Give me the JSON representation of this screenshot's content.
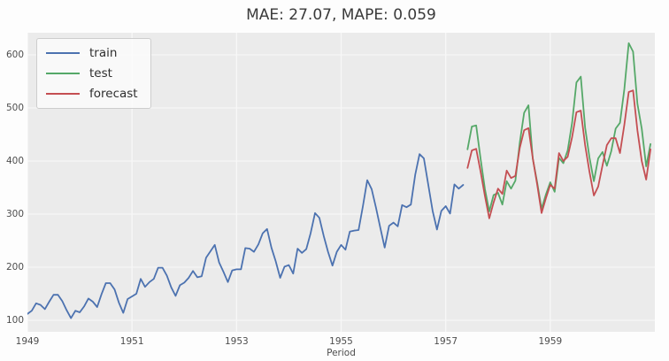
{
  "title": "MAE: 27.07, MAPE: 0.059",
  "chart_data": {
    "type": "line",
    "title": "MAE: 27.07, MAPE: 0.059",
    "xlabel": "Period",
    "ylabel": "",
    "grid": true,
    "legend_position": "upper left",
    "plot_bg": "#ebebeb",
    "grid_color": "#f7f7f7",
    "x_tick_labels": [
      "1949",
      "1951",
      "1953",
      "1955",
      "1957",
      "1959"
    ],
    "x_tick_months": [
      0,
      24,
      48,
      72,
      96,
      120
    ],
    "y_ticks": [
      100,
      200,
      300,
      400,
      500,
      600
    ],
    "xlim_months": [
      0,
      144
    ],
    "ylim": [
      78.3,
      641.7
    ],
    "x_start_year": 1949,
    "series": [
      {
        "name": "train",
        "color": "#4C72B0",
        "start_month": 0,
        "values": [
          112,
          118,
          132,
          129,
          121,
          135,
          148,
          148,
          136,
          119,
          104,
          118,
          115,
          126,
          141,
          135,
          125,
          149,
          170,
          170,
          158,
          133,
          114,
          140,
          145,
          150,
          178,
          163,
          172,
          178,
          199,
          199,
          184,
          162,
          146,
          166,
          171,
          180,
          193,
          181,
          183,
          218,
          230,
          242,
          209,
          191,
          172,
          194,
          196,
          196,
          236,
          235,
          229,
          243,
          264,
          272,
          237,
          211,
          180,
          201,
          204,
          188,
          235,
          227,
          234,
          264,
          302,
          293,
          259,
          229,
          203,
          229,
          242,
          233,
          267,
          269,
          270,
          315,
          364,
          347,
          312,
          274,
          237,
          278,
          284,
          277,
          317,
          313,
          318,
          374,
          413,
          405,
          355,
          306,
          271,
          306,
          315,
          301,
          356,
          348,
          355
        ]
      },
      {
        "name": "test",
        "color": "#55A868",
        "start_month": 101,
        "values": [
          422,
          465,
          467,
          404,
          347,
          305,
          336,
          340,
          318,
          362,
          348,
          363,
          435,
          491,
          505,
          404,
          359,
          310,
          337,
          360,
          342,
          406,
          396,
          420,
          472,
          548,
          559,
          463,
          407,
          362,
          405,
          417,
          391,
          419,
          461,
          472,
          535,
          622,
          606,
          508,
          461,
          390,
          432
        ]
      },
      {
        "name": "forecast",
        "color": "#C44E52",
        "start_month": 101,
        "values": [
          387,
          420,
          423,
          380,
          334,
          292,
          322,
          348,
          338,
          382,
          368,
          372,
          425,
          458,
          462,
          405,
          355,
          302,
          330,
          355,
          348,
          415,
          400,
          408,
          445,
          492,
          495,
          430,
          380,
          335,
          352,
          392,
          430,
          443,
          443,
          415,
          468,
          530,
          533,
          458,
          400,
          365,
          422
        ]
      }
    ]
  },
  "legend": {
    "items": [
      {
        "label": "train"
      },
      {
        "label": "test"
      },
      {
        "label": "forecast"
      }
    ]
  }
}
